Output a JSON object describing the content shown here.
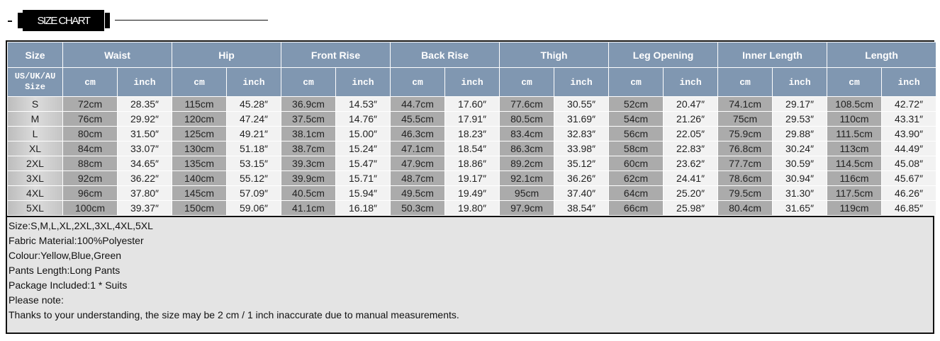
{
  "banner": {
    "title": "SIZE CHART"
  },
  "table": {
    "size_header": "Size",
    "size_subheader": [
      "US/UK/AU",
      "Size"
    ],
    "unit_cm": "cm",
    "unit_inch": "inch",
    "groups": [
      "Waist",
      "Hip",
      "Front Rise",
      "Back Rise",
      "Thigh",
      "Leg Opening",
      "Inner Length",
      "Length"
    ],
    "rows": [
      [
        "S",
        "72cm",
        "28.35″",
        "115cm",
        "45.28″",
        "36.9cm",
        "14.53″",
        "44.7cm",
        "17.60″",
        "77.6cm",
        "30.55″",
        "52cm",
        "20.47″",
        "74.1cm",
        "29.17″",
        "108.5cm",
        "42.72″"
      ],
      [
        "M",
        "76cm",
        "29.92″",
        "120cm",
        "47.24″",
        "37.5cm",
        "14.76″",
        "45.5cm",
        "17.91″",
        "80.5cm",
        "31.69″",
        "54cm",
        "21.26″",
        "75cm",
        "29.53″",
        "110cm",
        "43.31″"
      ],
      [
        "L",
        "80cm",
        "31.50″",
        "125cm",
        "49.21″",
        "38.1cm",
        "15.00″",
        "46.3cm",
        "18.23″",
        "83.4cm",
        "32.83″",
        "56cm",
        "22.05″",
        "75.9cm",
        "29.88″",
        "111.5cm",
        "43.90″"
      ],
      [
        "XL",
        "84cm",
        "33.07″",
        "130cm",
        "51.18″",
        "38.7cm",
        "15.24″",
        "47.1cm",
        "18.54″",
        "86.3cm",
        "33.98″",
        "58cm",
        "22.83″",
        "76.8cm",
        "30.24″",
        "113cm",
        "44.49″"
      ],
      [
        "2XL",
        "88cm",
        "34.65″",
        "135cm",
        "53.15″",
        "39.3cm",
        "15.47″",
        "47.9cm",
        "18.86″",
        "89.2cm",
        "35.12″",
        "60cm",
        "23.62″",
        "77.7cm",
        "30.59″",
        "114.5cm",
        "45.08″"
      ],
      [
        "3XL",
        "92cm",
        "36.22″",
        "140cm",
        "55.12″",
        "39.9cm",
        "15.71″",
        "48.7cm",
        "19.17″",
        "92.1cm",
        "36.26″",
        "62cm",
        "24.41″",
        "78.6cm",
        "30.94″",
        "116cm",
        "45.67″"
      ],
      [
        "4XL",
        "96cm",
        "37.80″",
        "145cm",
        "57.09″",
        "40.5cm",
        "15.94″",
        "49.5cm",
        "19.49″",
        "95cm",
        "37.40″",
        "64cm",
        "25.20″",
        "79.5cm",
        "31.30″",
        "117.5cm",
        "46.26″"
      ],
      [
        "5XL",
        "100cm",
        "39.37″",
        "150cm",
        "59.06″",
        "41.1cm",
        "16.18″",
        "50.3cm",
        "19.80″",
        "97.9cm",
        "38.54″",
        "66cm",
        "25.98″",
        "80.4cm",
        "31.65″",
        "119cm",
        "46.85″"
      ]
    ]
  },
  "notes": [
    "Size:S,M,L,XL,2XL,3XL,4XL,5XL",
    "Fabric Material:100%Polyester",
    "Colour:Yellow,Blue,Green",
    "Pants Length:Long Pants",
    "Package Included:1 * Suits",
    "Please note:",
    "Thanks to your understanding, the size may be 2 cm / 1 inch inaccurate due to manual measurements."
  ],
  "colors": {
    "header": "#8097b1",
    "cm_cell": "#ababab",
    "inch_cell": "#f2f2f2",
    "notes_bg": "#e4e4e4"
  }
}
